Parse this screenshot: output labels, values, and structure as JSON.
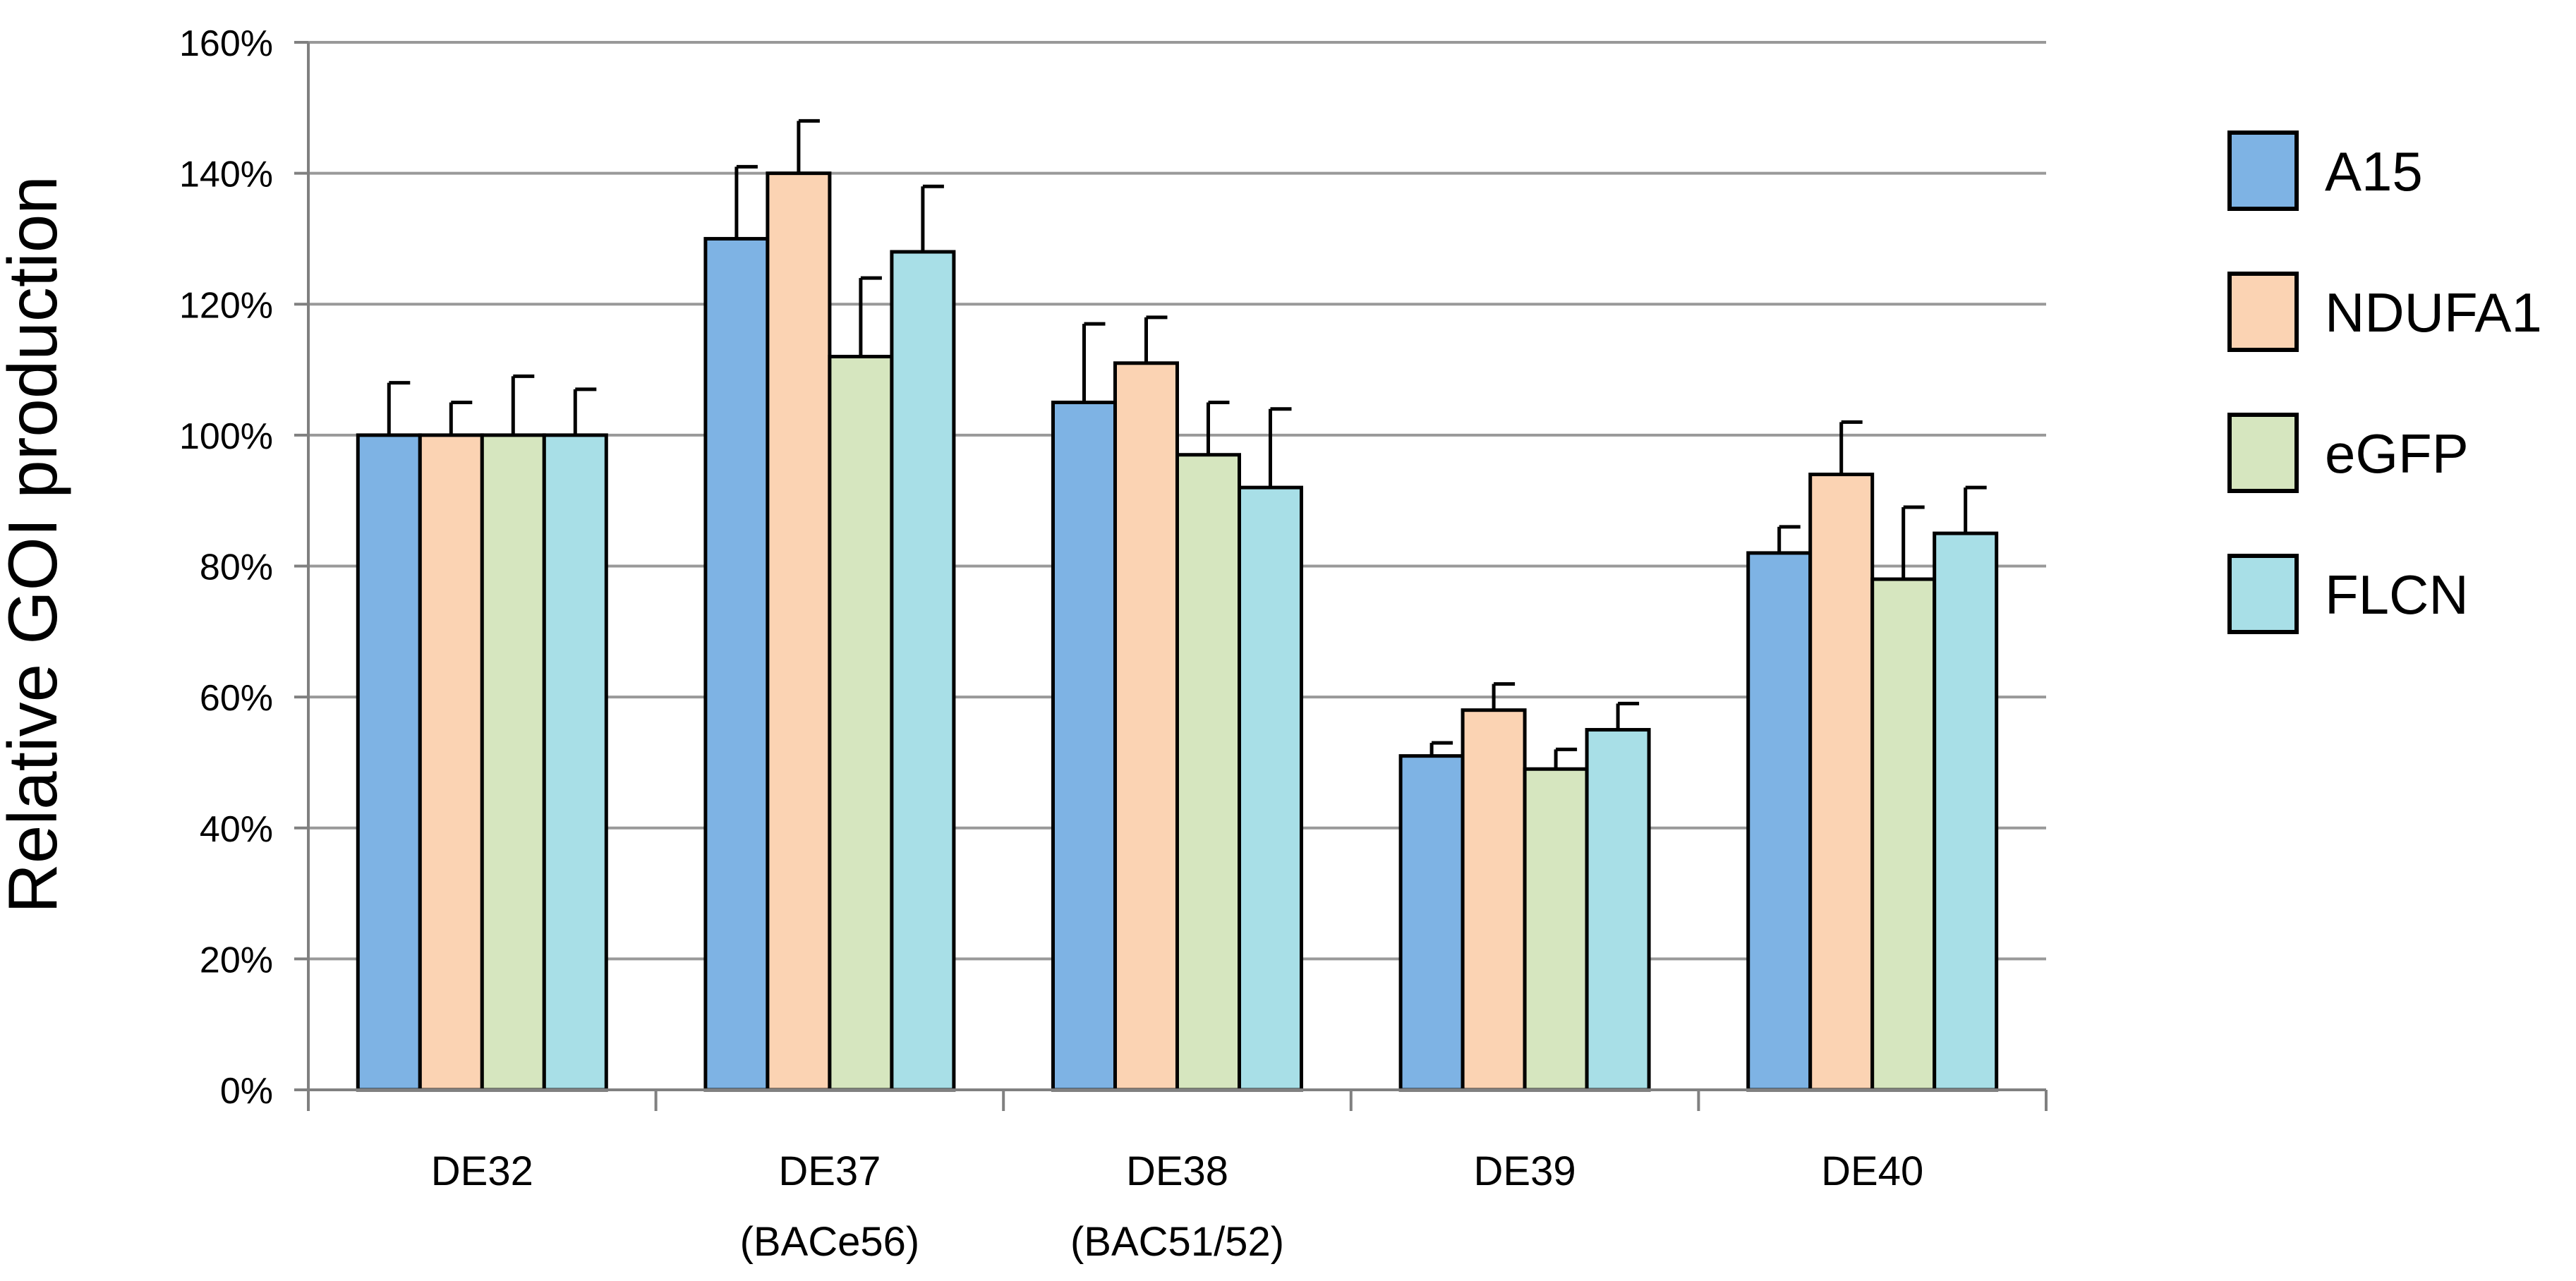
{
  "chart_data": {
    "type": "bar",
    "title": "",
    "xlabel": "",
    "ylabel": "Relative GOI production",
    "ylim": [
      0,
      160
    ],
    "ytick_step": 20,
    "ytick_labels": [
      "0%",
      "20%",
      "40%",
      "60%",
      "80%",
      "100%",
      "120%",
      "140%",
      "160%"
    ],
    "grid": true,
    "legend_position": "right",
    "categories": [
      {
        "line1": "DE32",
        "line2": ""
      },
      {
        "line1": "DE37",
        "line2": "(BACe56)"
      },
      {
        "line1": "DE38",
        "line2": "(BAC51/52)"
      },
      {
        "line1": "DE39",
        "line2": ""
      },
      {
        "line1": "DE40",
        "line2": ""
      }
    ],
    "series": [
      {
        "name": "A15",
        "color": "#7eb3e4",
        "values": [
          100,
          130,
          105,
          51,
          82
        ],
        "errors": [
          8,
          11,
          12,
          2,
          4
        ]
      },
      {
        "name": "NDUFA1",
        "color": "#fbd3b3",
        "values": [
          100,
          140,
          111,
          58,
          94
        ],
        "errors": [
          5,
          8,
          7,
          4,
          8
        ]
      },
      {
        "name": "eGFP",
        "color": "#d6e6bf",
        "values": [
          100,
          112,
          97,
          49,
          78
        ],
        "errors": [
          9,
          12,
          8,
          3,
          11
        ]
      },
      {
        "name": "FLCN",
        "color": "#a8dfe7",
        "values": [
          100,
          128,
          92,
          55,
          85
        ],
        "errors": [
          7,
          10,
          12,
          4,
          7
        ]
      }
    ]
  }
}
